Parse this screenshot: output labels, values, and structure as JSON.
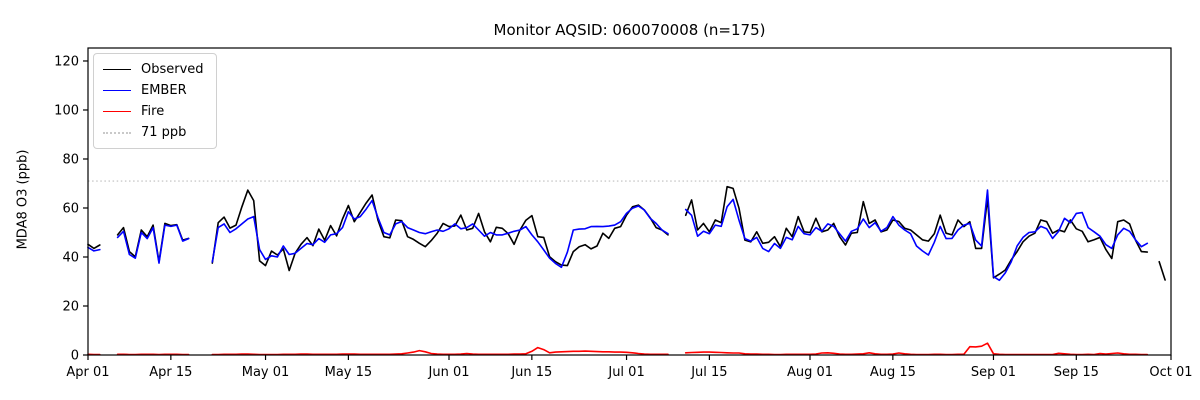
{
  "title": "Monitor AQSID: 060070008 (n=175)",
  "chart_data": {
    "type": "line",
    "title": "Monitor AQSID: 060070008 (n=175)",
    "xlabel": "",
    "ylabel": "MDA8 O3 (ppb)",
    "ylim": [
      0,
      125.3
    ],
    "y_ticks": [
      0,
      20,
      40,
      60,
      80,
      100,
      120
    ],
    "x_range_days": 183,
    "x_start_label": "Apr 01",
    "x_end_label": "Oct 01",
    "x_tick_days": [
      0,
      14,
      30,
      44,
      61,
      75,
      91,
      105,
      122,
      136,
      153,
      167,
      183
    ],
    "x_tick_labels": [
      "Apr 01",
      "Apr 15",
      "May 01",
      "May 15",
      "Jun 01",
      "Jun 15",
      "Jul 01",
      "Jul 15",
      "Aug 01",
      "Aug 15",
      "Sep 01",
      "Sep 15",
      "Oct 01"
    ],
    "grid": false,
    "legend_position": "upper-left",
    "threshold": {
      "value": 71,
      "label": "71 ppb",
      "color": "#c9c9c9",
      "style": "dotted"
    },
    "series": [
      {
        "name": "Observed",
        "color": "#000000",
        "values": [
          45.2,
          43.5,
          44.9,
          null,
          null,
          49,
          52,
          42.2,
          40.1,
          51,
          48.3,
          53,
          38.1,
          53.7,
          52.8,
          53.2,
          46.9,
          47.6,
          null,
          null,
          null,
          37.5,
          54,
          56.3,
          51.8,
          53,
          60.5,
          67.3,
          63,
          38.4,
          36.5,
          42.4,
          40.8,
          43.3,
          34.5,
          41.5,
          45.2,
          47.9,
          44.6,
          51.4,
          46.8,
          52.8,
          48.6,
          55.5,
          61,
          54.4,
          58.2,
          62,
          65.3,
          55,
          48.3,
          47.8,
          55.1,
          54.8,
          48.3,
          47.2,
          45.6,
          44.2,
          46.7,
          49.7,
          53.7,
          52.4,
          52.7,
          57.1,
          51,
          51.7,
          57.8,
          50.3,
          46.2,
          52.1,
          51.7,
          49.5,
          45.2,
          51,
          55,
          56.9,
          48.3,
          48,
          40.1,
          38.1,
          36.7,
          36.5,
          42.2,
          44.2,
          45,
          43.3,
          44.5,
          49.7,
          47.6,
          51.7,
          52.4,
          57.1,
          60.5,
          61.2,
          59.2,
          56,
          52,
          51,
          49,
          null,
          null,
          57,
          63.3,
          51,
          53.7,
          50.3,
          55.1,
          54,
          68.7,
          68,
          59.9,
          46.9,
          46.2,
          50.3,
          45.6,
          46,
          48.3,
          44.2,
          51.7,
          48.3,
          56.5,
          50.3,
          50,
          55.8,
          50.3,
          51,
          53.7,
          48.3,
          44.9,
          49.7,
          50,
          62.6,
          53.7,
          55.1,
          50.3,
          51,
          55.1,
          54.5,
          51.7,
          51,
          49,
          47,
          46.5,
          49.5,
          57.1,
          49.7,
          49,
          55.1,
          52.4,
          54.4,
          43.5,
          43.5,
          64,
          31.5,
          33,
          34.7,
          38.8,
          42.2,
          46.2,
          48.5,
          49.7,
          55.1,
          54.4,
          49.7,
          51,
          50.3,
          55.1,
          51.5,
          50.5,
          46.2,
          47,
          48,
          43,
          39.4,
          54.4,
          55.1,
          53.5,
          46.9,
          42.2,
          42,
          null,
          38.1,
          30.6
        ]
      },
      {
        "name": "EMBER",
        "color": "#0000ff",
        "values": [
          43.9,
          42.5,
          43,
          null,
          null,
          48,
          50.5,
          41,
          39.5,
          50,
          47.5,
          52,
          37.5,
          53,
          52.5,
          53,
          46.5,
          47.5,
          null,
          null,
          null,
          38,
          52,
          53.5,
          50,
          51.5,
          53.5,
          55.5,
          56.5,
          43,
          39,
          40.5,
          40,
          44.5,
          41,
          41.5,
          43.5,
          45.5,
          45,
          47.5,
          46,
          49,
          49.5,
          52,
          58.5,
          55.5,
          56.5,
          59.5,
          63,
          56,
          50,
          49,
          53.5,
          54.5,
          52,
          51,
          50,
          49.5,
          50.3,
          51,
          50.5,
          51.5,
          53.5,
          51.5,
          52,
          53.5,
          51,
          48.5,
          50,
          49,
          49,
          49.7,
          50.5,
          51,
          52.4,
          49,
          46.2,
          42.9,
          39.5,
          37.4,
          35.8,
          42,
          51,
          51.4,
          51.5,
          52.4,
          52.5,
          52.4,
          52.6,
          53,
          54.4,
          57.8,
          59.9,
          60.8,
          59.2,
          55.8,
          53.7,
          51,
          49.5,
          null,
          null,
          59.4,
          57,
          48.5,
          50.5,
          49.5,
          53,
          52.5,
          60.5,
          63.5,
          55,
          47.5,
          46.5,
          48,
          43.5,
          42.2,
          45.5,
          43.5,
          48,
          47,
          52.5,
          49.5,
          49,
          52,
          50.5,
          53.5,
          52.5,
          49.5,
          46.5,
          50.5,
          51.5,
          55.5,
          52,
          54,
          50.5,
          52,
          56.5,
          53,
          51,
          49.5,
          44.5,
          42.5,
          40.8,
          46,
          52.5,
          47.5,
          47.6,
          51,
          53,
          53.7,
          46.9,
          44.5,
          67.3,
          32,
          30.5,
          33.5,
          38,
          44.5,
          48,
          50,
          50.3,
          52.5,
          51.5,
          47.6,
          50.5,
          55.8,
          54,
          57.8,
          58.1,
          52,
          50.3,
          48.5,
          45,
          43.5,
          49,
          51.7,
          50.5,
          47,
          44.2,
          45.6,
          null,
          null,
          null
        ]
      },
      {
        "name": "Fire",
        "color": "#ff0000",
        "values": [
          0.3,
          0.2,
          0.2,
          null,
          null,
          0.3,
          0.3,
          0.2,
          0.2,
          0.3,
          0.3,
          0.3,
          0.2,
          0.3,
          0.3,
          0.3,
          0.2,
          0.2,
          null,
          null,
          null,
          0.2,
          0.2,
          0.3,
          0.3,
          0.3,
          0.4,
          0.4,
          0.3,
          0.2,
          0.2,
          0.2,
          0.2,
          0.3,
          0.3,
          0.3,
          0.4,
          0.4,
          0.3,
          0.3,
          0.3,
          0.3,
          0.3,
          0.4,
          0.4,
          0.4,
          0.3,
          0.3,
          0.3,
          0.3,
          0.3,
          0.3,
          0.4,
          0.5,
          0.8,
          1.2,
          1.8,
          1.3,
          0.6,
          0.4,
          0.3,
          0.3,
          0.3,
          0.4,
          0.6,
          0.4,
          0.3,
          0.3,
          0.3,
          0.3,
          0.3,
          0.3,
          0.4,
          0.4,
          0.5,
          1.5,
          3.0,
          2.2,
          0.9,
          1.2,
          1.3,
          1.4,
          1.5,
          1.5,
          1.6,
          1.5,
          1.4,
          1.3,
          1.3,
          1.2,
          1.2,
          1.1,
          0.9,
          0.6,
          0.4,
          0.3,
          0.3,
          0.3,
          0.3,
          null,
          null,
          0.9,
          1.0,
          1.1,
          1.2,
          1.2,
          1.1,
          1.0,
          0.9,
          0.8,
          0.8,
          0.5,
          0.4,
          0.4,
          0.3,
          0.3,
          0.2,
          0.2,
          0.3,
          0.3,
          0.3,
          0.3,
          0.3,
          0.4,
          0.8,
          0.9,
          0.7,
          0.4,
          0.3,
          0.3,
          0.4,
          0.5,
          0.9,
          0.5,
          0.3,
          0.3,
          0.4,
          0.8,
          0.5,
          0.3,
          0.2,
          0.2,
          0.2,
          0.3,
          0.3,
          0.2,
          0.2,
          0.3,
          0.3,
          3.4,
          3.3,
          3.6,
          4.8,
          0.5,
          0.3,
          0.2,
          0.2,
          0.2,
          0.2,
          0.2,
          0.2,
          0.2,
          0.2,
          0.2,
          0.7,
          0.5,
          0.3,
          0.2,
          0.2,
          0.3,
          0.2,
          0.6,
          0.4,
          0.6,
          0.8,
          0.5,
          0.3,
          0.3,
          0.2,
          0.2,
          null,
          null,
          null
        ]
      }
    ]
  },
  "legend": {
    "items": [
      {
        "label": "Observed"
      },
      {
        "label": "EMBER"
      },
      {
        "label": "Fire"
      },
      {
        "label": "71 ppb"
      }
    ]
  }
}
